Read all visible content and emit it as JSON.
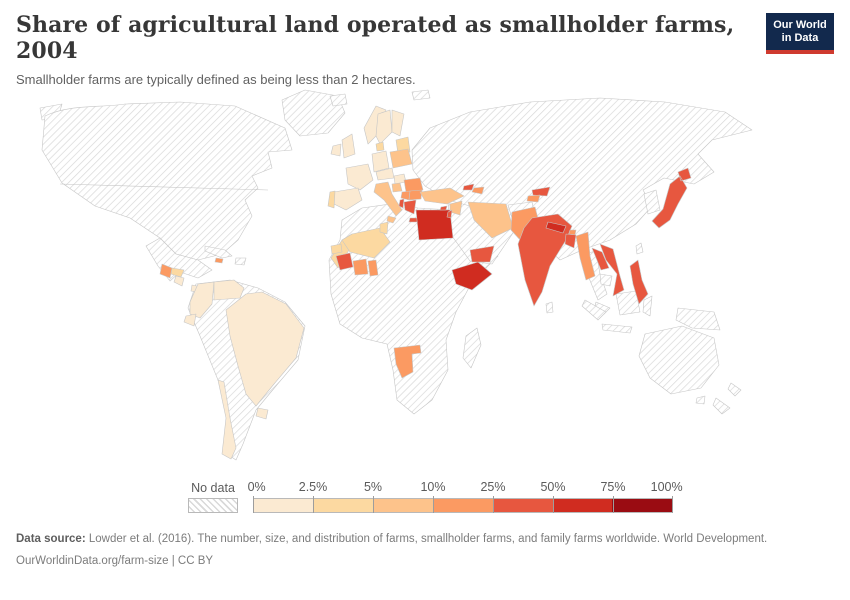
{
  "header": {
    "title": "Share of agricultural land operated as smallholder farms, 2004",
    "subtitle": "Smallholder farms are typically defined as being less than 2 hectares.",
    "logo": {
      "line1": "Our World",
      "line2": "in Data",
      "bg_color": "#12294d",
      "stripe_color": "#cf3a2f"
    }
  },
  "chart_data": {
    "type": "choropleth-map",
    "title": "Share of agricultural land operated as smallholder farms",
    "year": "2004",
    "unit": "% of agricultural land",
    "legend": {
      "no_data_label": "No data",
      "no_data_pattern": "diagonal-hatch",
      "tick_labels": [
        "0%",
        "2.5%",
        "5%",
        "10%",
        "25%",
        "50%",
        "75%",
        "100%"
      ],
      "bin_ranges": [
        "0-2.5%",
        "2.5-5%",
        "5-10%",
        "10-25%",
        "25-50%",
        "50-75%",
        "75-100%"
      ],
      "bin_colors": [
        "#fbead2",
        "#fcd9a1",
        "#fdc38b",
        "#fb9a62",
        "#e7573f",
        "#d02c20",
        "#9a0c12"
      ]
    },
    "country_bins": {
      "Colombia": 0,
      "Venezuela": 0,
      "Ecuador": 0,
      "Brazil": 0,
      "Chile": 0,
      "Uruguay": 0,
      "Panama": 0,
      "Nicaragua": 0,
      "United Kingdom": 0,
      "Ireland": 0,
      "France": 0,
      "Spain": 0,
      "Germany": 0,
      "Norway": 0,
      "Sweden": 0,
      "Finland": 0,
      "Austria": 0,
      "Hungary": 0,
      "Portugal": 1,
      "Denmark": 1,
      "Baltic states": 1,
      "Honduras": 1,
      "Morocco": 1,
      "Algeria": 1,
      "Tunisia": 1,
      "Senegal": 1,
      "Poland": 2,
      "Italy": 2,
      "Croatia": 2,
      "Turkey": 2,
      "Syria": 2,
      "Iran": 2,
      "Guatemala": 3,
      "Jamaica": 3,
      "Romania": 3,
      "Serbia": 3,
      "Bulgaria": 3,
      "Azerbaijan": 3,
      "Tajikistan": 3,
      "Pakistan": 3,
      "Myanmar": 3,
      "Bhutan": 3,
      "Cote d'Ivoire": 3,
      "Ghana": 3,
      "Namibia": 3,
      "Greece": 4,
      "Albania": 4,
      "Cyprus": 4,
      "Lebanon": 4,
      "Georgia": 4,
      "Kyrgyzstan": 4,
      "India": 4,
      "Bangladesh": 4,
      "Laos": 4,
      "Vietnam": 4,
      "Japan": 4,
      "Philippines": 4,
      "Yemen": 4,
      "Guinea": 4,
      "Egypt": 5,
      "Ethiopia": 5,
      "Nepal": 5
    },
    "no_data_regions": [
      "United States",
      "Canada",
      "Mexico",
      "Greenland",
      "Iceland",
      "Cuba",
      "Argentina",
      "Peru",
      "Bolivia",
      "Paraguay",
      "Russia",
      "Kazakhstan",
      "China",
      "Mongolia",
      "Saudi Arabia",
      "Iraq",
      "Afghanistan",
      "Thailand",
      "Cambodia",
      "Indonesia",
      "Papua New Guinea",
      "Australia",
      "New Zealand",
      "South Korea",
      "Madagascar",
      "most of Sub-Saharan Africa",
      "Sri Lanka",
      "Taiwan"
    ]
  },
  "footer": {
    "source_label": "Data source:",
    "source_text": " Lowder et al. (2016). The number, size, and distribution of farms, smallholder farms, and family farms worldwide. World Development.",
    "link_text": "OurWorldinData.org/farm-size | CC BY"
  }
}
